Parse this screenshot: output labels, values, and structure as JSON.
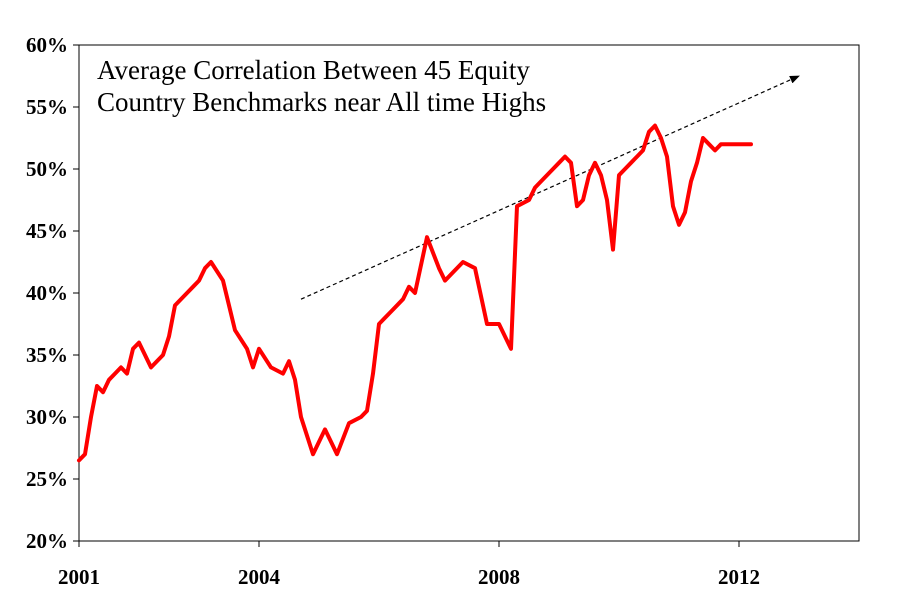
{
  "chart_data": {
    "type": "line",
    "title_lines": [
      "Average Correlation Between 45 Equity",
      "Country Benchmarks near All time Highs"
    ],
    "xlabel": "",
    "ylabel": "",
    "x_tick_labels": [
      "2001",
      "2004",
      "2008",
      "2012"
    ],
    "x_tick_values": [
      2001,
      2004,
      2008,
      2012
    ],
    "xlim": [
      2001,
      2014
    ],
    "ylim": [
      20,
      60
    ],
    "y_tick_values": [
      20,
      25,
      30,
      35,
      40,
      45,
      50,
      55,
      60
    ],
    "y_tick_labels": [
      "20%",
      "25%",
      "30%",
      "35%",
      "40%",
      "45%",
      "50%",
      "55%",
      "60%"
    ],
    "grid": false,
    "legend": "none",
    "series": [
      {
        "color": "#ff0000",
        "x": [
          2001.0,
          2001.1,
          2001.2,
          2001.3,
          2001.4,
          2001.5,
          2001.6,
          2001.7,
          2001.8,
          2001.9,
          2002.0,
          2002.2,
          2002.4,
          2002.5,
          2002.6,
          2002.8,
          2002.9,
          2003.0,
          2003.1,
          2003.2,
          2003.4,
          2003.6,
          2003.8,
          2003.9,
          2004.0,
          2004.2,
          2004.4,
          2004.5,
          2004.6,
          2004.7,
          2004.8,
          2004.9,
          2005.1,
          2005.2,
          2005.3,
          2005.5,
          2005.7,
          2005.8,
          2005.9,
          2006.0,
          2006.2,
          2006.4,
          2006.5,
          2006.6,
          2006.8,
          2007.0,
          2007.1,
          2007.2,
          2007.4,
          2007.6,
          2007.8,
          2008.0,
          2008.2,
          2008.3,
          2008.5,
          2008.6,
          2008.7,
          2008.9,
          2009.0,
          2009.1,
          2009.2,
          2009.3,
          2009.4,
          2009.5,
          2009.6,
          2009.7,
          2009.8,
          2009.9,
          2010.0,
          2010.1,
          2010.2,
          2010.3,
          2010.4,
          2010.5,
          2010.6,
          2010.7,
          2010.8,
          2010.9,
          2011.0,
          2011.1,
          2011.2,
          2011.3,
          2011.4,
          2011.5,
          2011.6,
          2011.7,
          2011.8,
          2011.9,
          2012.0,
          2012.1,
          2012.2
        ],
        "y": [
          26.5,
          27.0,
          30.0,
          32.5,
          32.0,
          33.0,
          33.5,
          34.0,
          33.5,
          35.5,
          36.0,
          34.0,
          35.0,
          36.5,
          39.0,
          40.0,
          40.5,
          41.0,
          42.0,
          42.5,
          41.0,
          37.0,
          35.5,
          34.0,
          35.5,
          34.0,
          33.5,
          34.5,
          33.0,
          30.0,
          28.5,
          27.0,
          29.0,
          28.0,
          27.0,
          29.5,
          30.0,
          30.5,
          33.5,
          37.5,
          38.5,
          39.5,
          40.5,
          40.0,
          44.5,
          42.0,
          41.0,
          41.5,
          42.5,
          42.0,
          37.5,
          37.5,
          35.5,
          47.0,
          47.5,
          48.5,
          49.0,
          50.0,
          50.5,
          51.0,
          50.5,
          47.0,
          47.5,
          49.5,
          50.5,
          49.5,
          47.5,
          43.5,
          49.5,
          50.0,
          50.5,
          51.0,
          51.5,
          53.0,
          53.5,
          52.5,
          51.0,
          47.0,
          45.5,
          46.5,
          49.0,
          50.5,
          52.5,
          52.0,
          51.5,
          52.0,
          52.0,
          52.0,
          52.0,
          52.0,
          52.0
        ]
      }
    ],
    "annotations": [
      {
        "type": "arrow",
        "style": "dashed",
        "x_start": 2004.7,
        "y_start": 39.5,
        "x_end": 2013.0,
        "y_end": 57.5
      }
    ]
  }
}
